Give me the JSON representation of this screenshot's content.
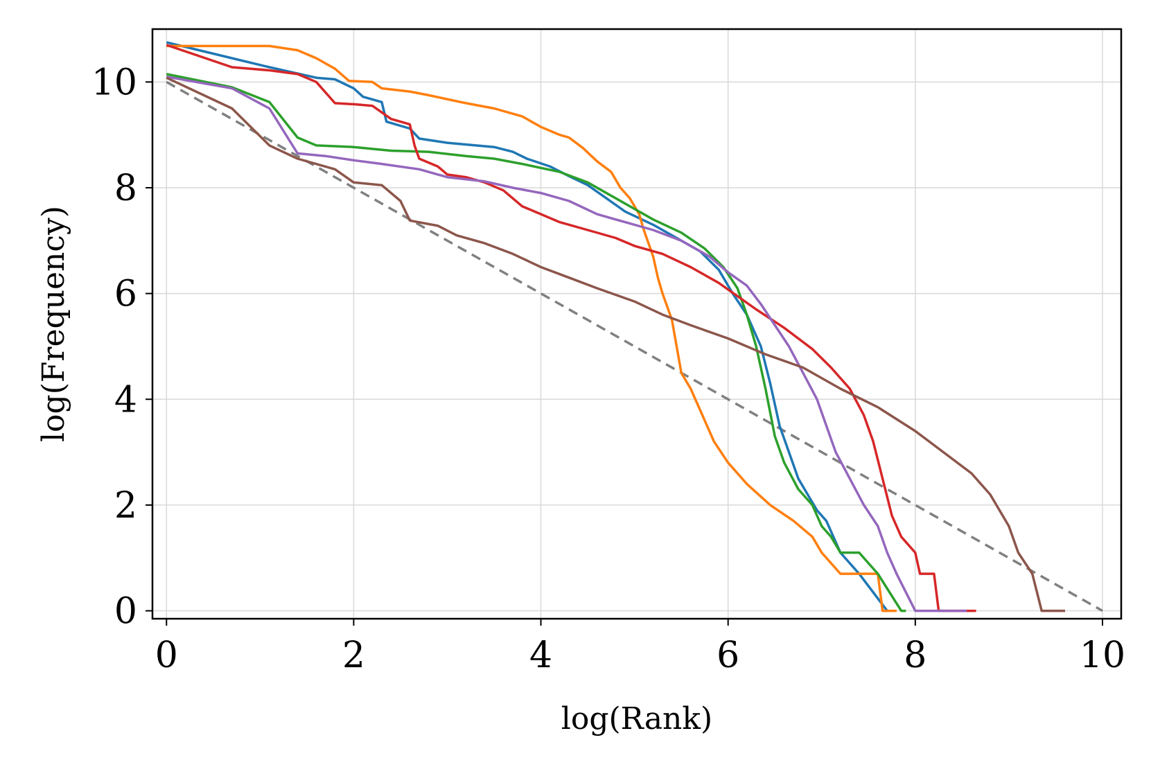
{
  "chart_data": {
    "type": "line",
    "title": "",
    "xlabel": "log(Rank)",
    "ylabel": "log(Frequency)",
    "xlim": [
      -0.15,
      10.2
    ],
    "ylim": [
      -0.15,
      11.0
    ],
    "xticks": [
      0,
      2,
      4,
      6,
      8,
      10
    ],
    "yticks": [
      0,
      2,
      4,
      6,
      8,
      10
    ],
    "xtick_labels": [
      "0",
      "2",
      "4",
      "6",
      "8",
      "10"
    ],
    "ytick_labels": [
      "0",
      "2",
      "4",
      "6",
      "8",
      "10"
    ],
    "grid": true,
    "legend": "none",
    "series": [
      {
        "name": "blue",
        "color": "#1f77b4",
        "points": [
          [
            0,
            10.75
          ],
          [
            0.7,
            10.45
          ],
          [
            1.1,
            10.28
          ],
          [
            1.6,
            10.08
          ],
          [
            1.8,
            10.05
          ],
          [
            2.0,
            9.88
          ],
          [
            2.1,
            9.72
          ],
          [
            2.3,
            9.62
          ],
          [
            2.35,
            9.25
          ],
          [
            2.6,
            9.12
          ],
          [
            2.7,
            8.93
          ],
          [
            3.0,
            8.85
          ],
          [
            3.5,
            8.77
          ],
          [
            3.7,
            8.68
          ],
          [
            3.85,
            8.55
          ],
          [
            4.1,
            8.4
          ],
          [
            4.3,
            8.22
          ],
          [
            4.5,
            8.05
          ],
          [
            4.7,
            7.8
          ],
          [
            4.9,
            7.55
          ],
          [
            5.2,
            7.3
          ],
          [
            5.5,
            7.0
          ],
          [
            5.7,
            6.8
          ],
          [
            5.9,
            6.45
          ],
          [
            6.05,
            6.0
          ],
          [
            6.2,
            5.6
          ],
          [
            6.35,
            5.0
          ],
          [
            6.45,
            4.3
          ],
          [
            6.55,
            3.5
          ],
          [
            6.65,
            3.0
          ],
          [
            6.75,
            2.5
          ],
          [
            6.85,
            2.2
          ],
          [
            6.95,
            1.9
          ],
          [
            7.05,
            1.7
          ],
          [
            7.2,
            1.1
          ],
          [
            7.4,
            0.7
          ],
          [
            7.7,
            0.0
          ]
        ]
      },
      {
        "name": "orange",
        "color": "#ff7f0e",
        "points": [
          [
            0,
            10.68
          ],
          [
            1.1,
            10.68
          ],
          [
            1.4,
            10.6
          ],
          [
            1.6,
            10.45
          ],
          [
            1.8,
            10.25
          ],
          [
            1.95,
            10.02
          ],
          [
            2.2,
            10.0
          ],
          [
            2.3,
            9.88
          ],
          [
            2.6,
            9.82
          ],
          [
            2.8,
            9.75
          ],
          [
            3.2,
            9.6
          ],
          [
            3.5,
            9.5
          ],
          [
            3.8,
            9.35
          ],
          [
            4.0,
            9.15
          ],
          [
            4.2,
            9.0
          ],
          [
            4.3,
            8.95
          ],
          [
            4.45,
            8.75
          ],
          [
            4.6,
            8.5
          ],
          [
            4.75,
            8.3
          ],
          [
            4.85,
            8.0
          ],
          [
            4.95,
            7.8
          ],
          [
            5.05,
            7.5
          ],
          [
            5.1,
            7.2
          ],
          [
            5.2,
            6.7
          ],
          [
            5.25,
            6.3
          ],
          [
            5.3,
            6.0
          ],
          [
            5.4,
            5.5
          ],
          [
            5.5,
            4.5
          ],
          [
            5.6,
            4.2
          ],
          [
            5.7,
            3.8
          ],
          [
            5.85,
            3.2
          ],
          [
            6.0,
            2.8
          ],
          [
            6.2,
            2.4
          ],
          [
            6.45,
            2.0
          ],
          [
            6.7,
            1.7
          ],
          [
            6.9,
            1.4
          ],
          [
            7.0,
            1.1
          ],
          [
            7.2,
            0.7
          ],
          [
            7.6,
            0.7
          ],
          [
            7.65,
            0.0
          ],
          [
            7.8,
            0.0
          ]
        ]
      },
      {
        "name": "green",
        "color": "#2ca02c",
        "points": [
          [
            0,
            10.15
          ],
          [
            0.7,
            9.9
          ],
          [
            1.1,
            9.62
          ],
          [
            1.4,
            8.95
          ],
          [
            1.6,
            8.8
          ],
          [
            2.0,
            8.77
          ],
          [
            2.4,
            8.7
          ],
          [
            2.8,
            8.68
          ],
          [
            3.2,
            8.6
          ],
          [
            3.5,
            8.55
          ],
          [
            3.8,
            8.45
          ],
          [
            4.2,
            8.3
          ],
          [
            4.5,
            8.1
          ],
          [
            4.8,
            7.8
          ],
          [
            5.0,
            7.6
          ],
          [
            5.2,
            7.4
          ],
          [
            5.5,
            7.15
          ],
          [
            5.75,
            6.85
          ],
          [
            5.95,
            6.5
          ],
          [
            6.1,
            6.1
          ],
          [
            6.2,
            5.6
          ],
          [
            6.3,
            5.0
          ],
          [
            6.4,
            4.2
          ],
          [
            6.5,
            3.3
          ],
          [
            6.6,
            2.8
          ],
          [
            6.75,
            2.3
          ],
          [
            6.9,
            2.0
          ],
          [
            7.0,
            1.6
          ],
          [
            7.1,
            1.4
          ],
          [
            7.2,
            1.1
          ],
          [
            7.4,
            1.1
          ],
          [
            7.6,
            0.7
          ],
          [
            7.85,
            0.0
          ],
          [
            7.9,
            0.0
          ]
        ]
      },
      {
        "name": "red",
        "color": "#d62728",
        "points": [
          [
            0,
            10.7
          ],
          [
            0.7,
            10.28
          ],
          [
            1.1,
            10.22
          ],
          [
            1.4,
            10.15
          ],
          [
            1.6,
            10.0
          ],
          [
            1.8,
            9.6
          ],
          [
            2.0,
            9.58
          ],
          [
            2.2,
            9.55
          ],
          [
            2.4,
            9.3
          ],
          [
            2.6,
            9.2
          ],
          [
            2.65,
            8.8
          ],
          [
            2.7,
            8.55
          ],
          [
            2.9,
            8.4
          ],
          [
            3.0,
            8.25
          ],
          [
            3.2,
            8.2
          ],
          [
            3.4,
            8.1
          ],
          [
            3.6,
            7.95
          ],
          [
            3.8,
            7.65
          ],
          [
            4.0,
            7.5
          ],
          [
            4.2,
            7.35
          ],
          [
            4.5,
            7.2
          ],
          [
            4.8,
            7.05
          ],
          [
            5.0,
            6.9
          ],
          [
            5.3,
            6.75
          ],
          [
            5.6,
            6.5
          ],
          [
            5.9,
            6.2
          ],
          [
            6.1,
            5.95
          ],
          [
            6.3,
            5.7
          ],
          [
            6.6,
            5.35
          ],
          [
            6.9,
            4.95
          ],
          [
            7.1,
            4.6
          ],
          [
            7.3,
            4.2
          ],
          [
            7.45,
            3.7
          ],
          [
            7.55,
            3.2
          ],
          [
            7.65,
            2.5
          ],
          [
            7.75,
            1.8
          ],
          [
            7.85,
            1.4
          ],
          [
            8.0,
            1.1
          ],
          [
            8.05,
            0.7
          ],
          [
            8.2,
            0.7
          ],
          [
            8.25,
            0.0
          ],
          [
            8.65,
            0.0
          ]
        ]
      },
      {
        "name": "purple",
        "color": "#9467bd",
        "points": [
          [
            0,
            10.1
          ],
          [
            0.7,
            9.88
          ],
          [
            1.1,
            9.5
          ],
          [
            1.4,
            8.65
          ],
          [
            1.7,
            8.6
          ],
          [
            2.0,
            8.52
          ],
          [
            2.3,
            8.45
          ],
          [
            2.7,
            8.35
          ],
          [
            3.0,
            8.2
          ],
          [
            3.4,
            8.12
          ],
          [
            3.7,
            8.0
          ],
          [
            4.0,
            7.9
          ],
          [
            4.3,
            7.75
          ],
          [
            4.6,
            7.5
          ],
          [
            4.9,
            7.35
          ],
          [
            5.2,
            7.2
          ],
          [
            5.5,
            7.0
          ],
          [
            5.8,
            6.7
          ],
          [
            6.0,
            6.4
          ],
          [
            6.2,
            6.15
          ],
          [
            6.35,
            5.8
          ],
          [
            6.5,
            5.4
          ],
          [
            6.65,
            5.0
          ],
          [
            6.8,
            4.5
          ],
          [
            6.95,
            4.0
          ],
          [
            7.05,
            3.5
          ],
          [
            7.15,
            3.0
          ],
          [
            7.3,
            2.5
          ],
          [
            7.45,
            2.0
          ],
          [
            7.6,
            1.6
          ],
          [
            7.7,
            1.1
          ],
          [
            7.8,
            0.7
          ],
          [
            8.0,
            0.0
          ],
          [
            8.55,
            0.0
          ]
        ]
      },
      {
        "name": "brown",
        "color": "#8c564b",
        "points": [
          [
            0,
            10.08
          ],
          [
            0.7,
            9.5
          ],
          [
            1.1,
            8.8
          ],
          [
            1.4,
            8.55
          ],
          [
            1.8,
            8.35
          ],
          [
            2.0,
            8.1
          ],
          [
            2.3,
            8.05
          ],
          [
            2.5,
            7.75
          ],
          [
            2.6,
            7.38
          ],
          [
            2.9,
            7.28
          ],
          [
            3.1,
            7.1
          ],
          [
            3.4,
            6.95
          ],
          [
            3.7,
            6.75
          ],
          [
            4.0,
            6.5
          ],
          [
            4.3,
            6.3
          ],
          [
            4.6,
            6.1
          ],
          [
            5.0,
            5.85
          ],
          [
            5.3,
            5.6
          ],
          [
            5.6,
            5.4
          ],
          [
            6.0,
            5.15
          ],
          [
            6.4,
            4.85
          ],
          [
            6.8,
            4.6
          ],
          [
            7.2,
            4.2
          ],
          [
            7.6,
            3.85
          ],
          [
            8.0,
            3.4
          ],
          [
            8.3,
            3.0
          ],
          [
            8.6,
            2.6
          ],
          [
            8.8,
            2.2
          ],
          [
            9.0,
            1.6
          ],
          [
            9.1,
            1.1
          ],
          [
            9.25,
            0.7
          ],
          [
            9.35,
            0.0
          ],
          [
            9.6,
            0.0
          ]
        ]
      }
    ],
    "reference_line": {
      "name": "slope -1",
      "color": "#808080",
      "style": "dashed",
      "points": [
        [
          0,
          10
        ],
        [
          10,
          0
        ]
      ]
    }
  }
}
